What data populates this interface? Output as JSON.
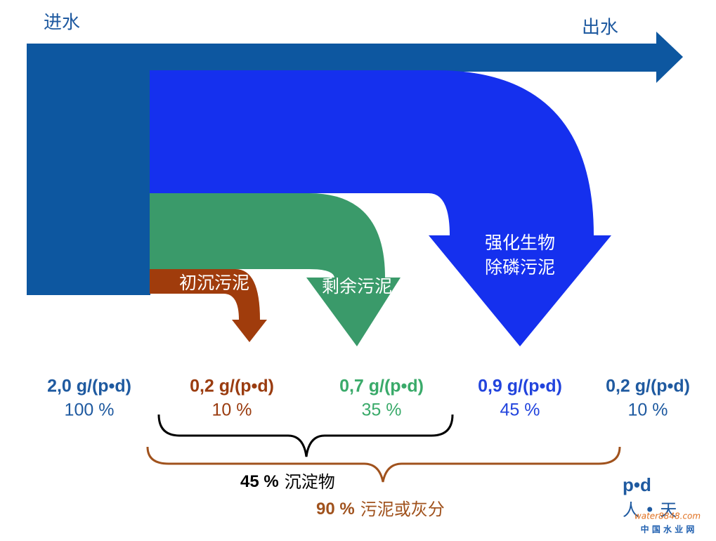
{
  "header": {
    "inflow": "进水",
    "outflow": "出水"
  },
  "flows": [
    {
      "label": [
        "初沉污泥"
      ]
    },
    {
      "label": [
        "剩余污泥"
      ]
    },
    {
      "label": [
        "强化生物",
        "除磷污泥"
      ]
    }
  ],
  "columns": [
    {
      "load": "2,0 g/(p•d)",
      "percent": "100 %"
    },
    {
      "load": "0,2 g/(p•d)",
      "percent": "10 %"
    },
    {
      "load": "0,7 g/(p•d)",
      "percent": "35 %"
    },
    {
      "load": "0,9 g/(p•d)",
      "percent": "45 %"
    },
    {
      "load": "0,2 g/(p•d)",
      "percent": "10 %"
    }
  ],
  "braces": [
    {
      "percent": "45 %",
      "label": "沉淀物"
    },
    {
      "percent": "90 %",
      "label": "污泥或灰分"
    }
  ],
  "legend": {
    "unit": "p•d",
    "meaning": "人 • 天"
  },
  "watermark": {
    "site": "water8848.com",
    "name": "中 国 水 业 网"
  }
}
